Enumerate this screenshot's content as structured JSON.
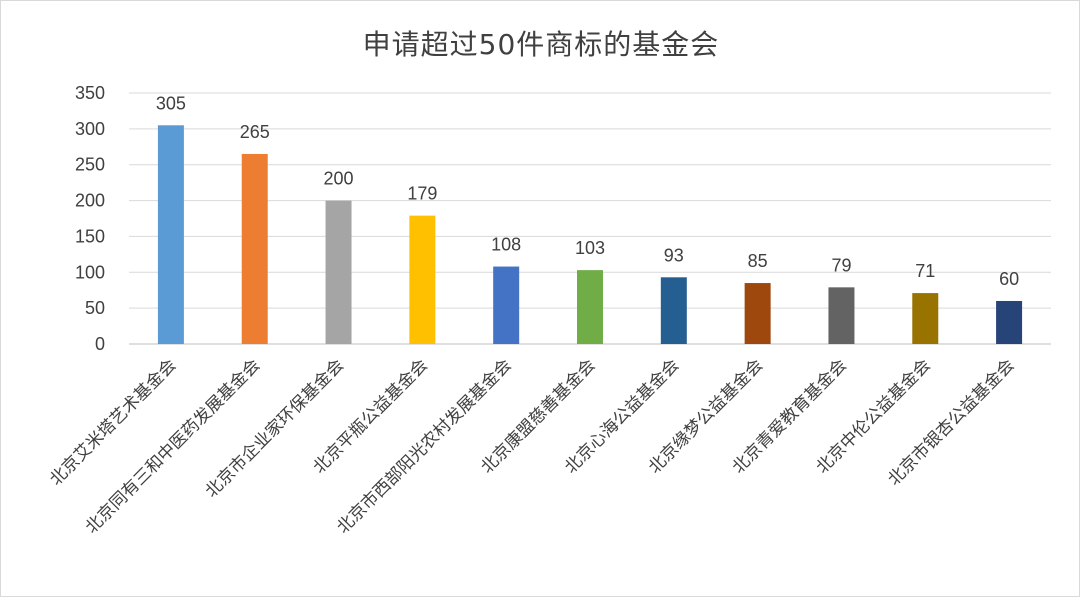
{
  "chart_data": {
    "type": "bar",
    "title": "申请超过50件商标的基金会",
    "categories": [
      "北京艾米塔艺术基金会",
      "北京同有三和中医药发展基金会",
      "北京市企业家环保基金会",
      "北京平瓶公益基金会",
      "北京市西部阳光农村发展基金会",
      "北京康盟慈善基金会",
      "北京心海公益基金会",
      "北京缘梦公益基金会",
      "北京青爱教育基金会",
      "北京中伦公益基金会",
      "北京市银杏公益基金会"
    ],
    "values": [
      305,
      265,
      200,
      179,
      108,
      103,
      93,
      85,
      79,
      71,
      60
    ],
    "colors": [
      "#5b9bd5",
      "#ed7d31",
      "#a5a5a5",
      "#ffc000",
      "#4472c4",
      "#70ad47",
      "#255e91",
      "#9e480e",
      "#636363",
      "#997300",
      "#264478"
    ],
    "yticks": [
      0,
      50,
      100,
      150,
      200,
      250,
      300,
      350
    ],
    "ylim": [
      0,
      350
    ],
    "grid": true,
    "data_labels": true,
    "legend": "none"
  }
}
